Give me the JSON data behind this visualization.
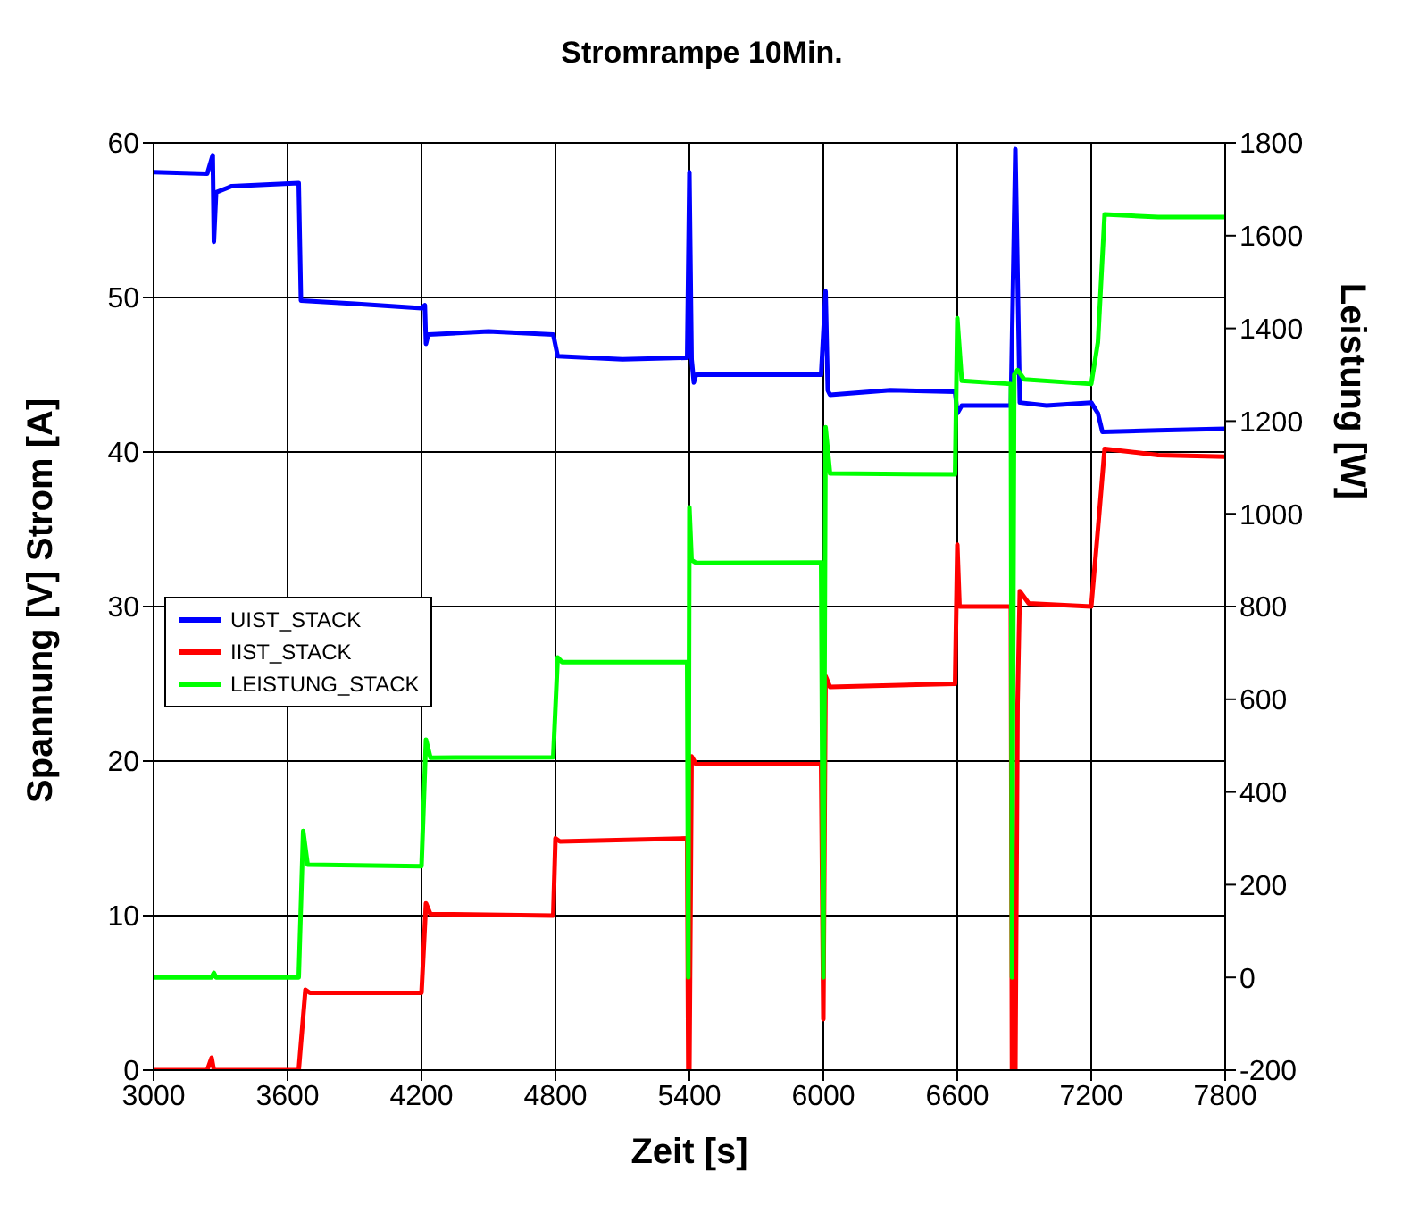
{
  "chart_data": {
    "type": "line",
    "title": "Stromrampe 10Min.",
    "xlabel": "Zeit [s]",
    "ylabel": "Spannung [V] Strom [A]",
    "y2label": "Leistung [W]",
    "xlim": [
      3000,
      7800
    ],
    "xticks": [
      3000,
      3600,
      4200,
      4800,
      5400,
      6000,
      6600,
      7200,
      7800
    ],
    "ylim": [
      0,
      60
    ],
    "yticks": [
      0,
      10,
      20,
      30,
      40,
      50,
      60
    ],
    "y2lim": [
      -200,
      1800
    ],
    "y2ticks": [
      -200,
      0,
      200,
      400,
      600,
      800,
      1000,
      1200,
      1400,
      1600,
      1800
    ],
    "grid": true,
    "legend": "left",
    "marker": "none",
    "line_style": "solid",
    "series": [
      {
        "name": "UIST_STACK",
        "color": "#0000ff",
        "x": [
          3000,
          3240,
          3265,
          3270,
          3280,
          3350,
          3650,
          3660,
          3900,
          4200,
          4215,
          4220,
          4230,
          4500,
          4790,
          4810,
          5100,
          5390,
          5400,
          5410,
          5420,
          5430,
          5700,
          5990,
          6010,
          6020,
          6030,
          6300,
          6590,
          6600,
          6620,
          6840,
          6860,
          6880,
          7000,
          7200,
          7230,
          7250,
          7500,
          7800
        ],
        "values": [
          58.1,
          58,
          59.2,
          53.6,
          56.8,
          57.2,
          57.4,
          49.8,
          49.6,
          49.3,
          49.5,
          47,
          47.6,
          47.8,
          47.6,
          46.2,
          46,
          46.1,
          58.1,
          46,
          44.5,
          45,
          45,
          45,
          50.4,
          44,
          43.7,
          44,
          43.9,
          42.5,
          43,
          43,
          59.6,
          43.2,
          43,
          43.2,
          42.5,
          41.3,
          41.4,
          41.5
        ]
      },
      {
        "name": "IIST_STACK",
        "color": "#ff0000",
        "x": [
          3000,
          3240,
          3260,
          3270,
          3650,
          3680,
          3700,
          4200,
          4220,
          4240,
          4790,
          4800,
          4820,
          5390,
          5395,
          5400,
          5410,
          5430,
          5990,
          6000,
          6010,
          6030,
          6590,
          6600,
          6610,
          6840,
          6845,
          6860,
          6870,
          6880,
          6920,
          7200,
          7230,
          7260,
          7500,
          7800
        ],
        "values": [
          0,
          0,
          0.8,
          0,
          0,
          5.2,
          5,
          5,
          10.8,
          10.1,
          10,
          15,
          14.8,
          15,
          0,
          0,
          20.3,
          19.8,
          19.8,
          3.3,
          25.5,
          24.8,
          25,
          34,
          30,
          30,
          0,
          0,
          23.7,
          31,
          30.2,
          30,
          35,
          40.2,
          39.8,
          39.7
        ]
      },
      {
        "name": "LEISTUNG_STACK",
        "color": "#00ff00",
        "axis": "y2",
        "x": [
          3000,
          3260,
          3270,
          3280,
          3650,
          3670,
          3690,
          4200,
          4220,
          4240,
          4790,
          4810,
          4830,
          5390,
          5395,
          5400,
          5410,
          5430,
          5990,
          6000,
          6010,
          6030,
          6590,
          6600,
          6620,
          6840,
          6845,
          6855,
          6870,
          6900,
          7200,
          7230,
          7260,
          7500,
          7800
        ],
        "values": [
          0,
          0,
          10,
          0,
          0,
          316,
          243,
          240,
          513,
          474,
          475,
          690,
          680,
          680,
          0,
          1014,
          900,
          894,
          895,
          0,
          1187,
          1087,
          1085,
          1422,
          1287,
          1280,
          0,
          1300,
          1310,
          1290,
          1280,
          1370,
          1646,
          1640,
          1640
        ]
      }
    ]
  }
}
